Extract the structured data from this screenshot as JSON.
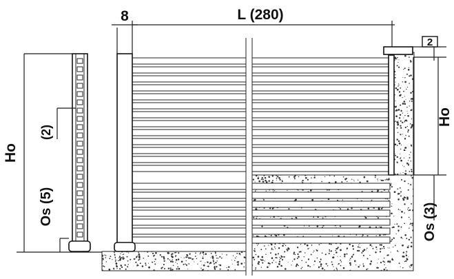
{
  "labels": {
    "panel_length": "L (280)",
    "post_width": "8",
    "cap_height": "2",
    "height_left": "Ho",
    "height_right": "Ho",
    "spacing": "(2)",
    "offset_left": "Os (5)",
    "offset_right": "Os (3)"
  },
  "colors": {
    "line": "#111111",
    "speckle": "#333333",
    "background": "#ffffff"
  }
}
